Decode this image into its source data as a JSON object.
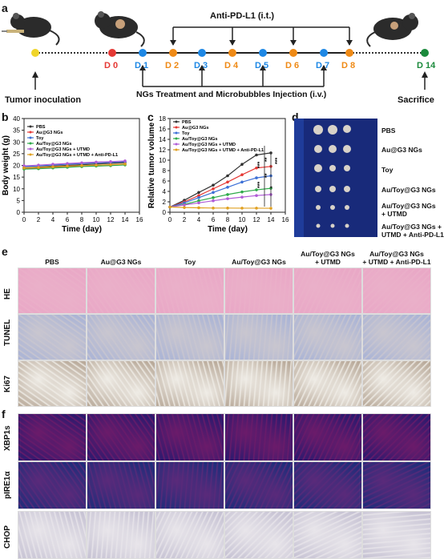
{
  "panels": {
    "a": "a",
    "b": "b",
    "c": "c",
    "d": "d",
    "e": "e",
    "f": "f"
  },
  "timeline": {
    "top_label": "Anti-PD-L1 (i.t.)",
    "bottom_label": "NGs Treatment and Microbubbles Injection (i.v.)",
    "days": [
      "D 0",
      "D 1",
      "D 2",
      "D 3",
      "D 4",
      "D 5",
      "D 6",
      "D 7",
      "D 8",
      "D 14"
    ],
    "day_colors": [
      "#e53935",
      "#1e88e5",
      "#ef8a16",
      "#1e88e5",
      "#ef8a16",
      "#1e88e5",
      "#ef8a16",
      "#1e88e5",
      "#ef8a16",
      "#1b8a3c"
    ],
    "tumor_inoculation": "Tumor inoculation",
    "sacrifice": "Sacrifice"
  },
  "legend_entries": [
    "PBS",
    "Au@G3 NGs",
    "Toy",
    "Au/Toy@G3 NGs",
    "Au/Toy@G3 NGs + UTMD",
    "Au/Toy@G3 NGs + UTMD + Anti-PD-L1"
  ],
  "series_colors": [
    "#333333",
    "#e53935",
    "#3b6fd6",
    "#2eaa4a",
    "#b05cd6",
    "#e0a020"
  ],
  "chart_data": [
    {
      "type": "line",
      "xlabel": "Time (day)",
      "ylabel": "Body weight (g)",
      "xlim": [
        0,
        16
      ],
      "ylim": [
        0,
        40
      ],
      "xticks": [
        "0",
        "2",
        "4",
        "6",
        "8",
        "10",
        "12",
        "14",
        "16"
      ],
      "yticks": [
        "0",
        "5",
        "10",
        "15",
        "20",
        "25",
        "30",
        "35",
        "40"
      ],
      "x": [
        0,
        2,
        4,
        6,
        8,
        10,
        12,
        14
      ],
      "series": [
        {
          "name": "PBS",
          "values": [
            19,
            19.3,
            19.7,
            20,
            20.3,
            20.6,
            20.9,
            21.2
          ]
        },
        {
          "name": "Au@G3 NGs",
          "values": [
            18.6,
            18.8,
            19.1,
            19.4,
            19.7,
            19.9,
            20.1,
            20.4
          ]
        },
        {
          "name": "Toy",
          "values": [
            19.5,
            19.8,
            20.2,
            20.5,
            20.8,
            21.1,
            21.3,
            21.6
          ]
        },
        {
          "name": "Au/Toy@G3 NGs",
          "values": [
            18.4,
            18.6,
            18.9,
            19.2,
            19.5,
            19.7,
            19.9,
            20.2
          ]
        },
        {
          "name": "Au/Toy@G3 NGs + UTMD",
          "values": [
            19.8,
            20.1,
            20.5,
            20.8,
            21.1,
            21.4,
            21.6,
            21.9
          ]
        },
        {
          "name": "Au/Toy@G3 NGs + UTMD + Anti-PD-L1",
          "values": [
            18.9,
            19.1,
            19.4,
            19.7,
            19.9,
            20.1,
            20.3,
            20.6
          ]
        }
      ]
    },
    {
      "type": "line",
      "xlabel": "Time (day)",
      "ylabel": "Relative tumor volume",
      "xlim": [
        0,
        16
      ],
      "ylim": [
        0,
        18
      ],
      "xticks": [
        "0",
        "2",
        "4",
        "6",
        "8",
        "10",
        "12",
        "14",
        "16"
      ],
      "yticks": [
        "0",
        "2",
        "4",
        "6",
        "8",
        "10",
        "12",
        "14",
        "16",
        "18"
      ],
      "x": [
        0,
        2,
        4,
        6,
        8,
        10,
        12,
        14
      ],
      "series": [
        {
          "name": "PBS",
          "values": [
            1,
            2.3,
            3.8,
            5.2,
            7,
            9.2,
            11,
            11.4
          ]
        },
        {
          "name": "Au@G3 NGs",
          "values": [
            1,
            2,
            3.2,
            4.5,
            5.8,
            7.2,
            8.5,
            8.8
          ]
        },
        {
          "name": "Toy",
          "values": [
            1,
            1.8,
            2.8,
            3.8,
            4.8,
            5.8,
            6.6,
            7
          ]
        },
        {
          "name": "Au/Toy@G3 NGs",
          "values": [
            1,
            1.5,
            2.2,
            2.8,
            3.4,
            3.9,
            4.3,
            4.6
          ]
        },
        {
          "name": "Au/Toy@G3 NGs + UTMD",
          "values": [
            1,
            1.4,
            1.8,
            2.2,
            2.6,
            2.9,
            3.2,
            3.4
          ]
        },
        {
          "name": "Au/Toy@G3 NGs + UTMD + Anti-PD-L1",
          "values": [
            1,
            0.9,
            0.85,
            0.8,
            0.8,
            0.78,
            0.78,
            0.76
          ]
        }
      ],
      "annotations": [
        "***",
        "***",
        "**",
        "**",
        "*",
        "***"
      ]
    }
  ],
  "panel_d_labels": [
    "PBS",
    "Au@G3 NGs",
    "Toy",
    "Au/Toy@G3 NGs",
    "Au/Toy@G3 NGs\n+ UTMD",
    "Au/Toy@G3 NGs +\nUTMD + Anti-PD-L1"
  ],
  "panel_e": {
    "col_labels": [
      "PBS",
      "Au@G3 NGs",
      "Toy",
      "Au/Toy@G3 NGs",
      "Au/Toy@G3 NGs\n+ UTMD",
      "Au/Toy@G3 NGs\n+ UTMD + Anti-PD-L1"
    ],
    "row_labels": [
      "HE",
      "TUNEL",
      "Ki67"
    ],
    "row_colors": [
      [
        "#e9a7c6",
        "#eab0c9"
      ],
      [
        "#a9b3d6",
        "#c9c6cf"
      ],
      [
        "#b9aa9a",
        "#efece6"
      ]
    ]
  },
  "panel_f": {
    "row_labels": [
      "XBP1s",
      "pIRE1α",
      "CHOP"
    ],
    "row_colors": [
      [
        "#2a1a6e",
        "#6b1b6a"
      ],
      [
        "#1e2d7a",
        "#5a2a7a"
      ],
      [
        "#c7c3d4",
        "#e8e5ea"
      ]
    ]
  }
}
